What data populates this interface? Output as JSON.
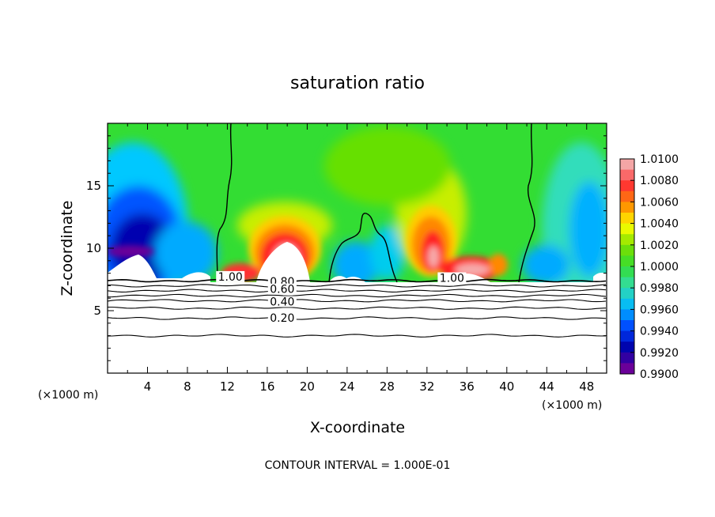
{
  "chart_data": {
    "type": "heatmap",
    "title": "saturation ratio",
    "xlabel": "X-coordinate",
    "ylabel": "Z-coordinate",
    "x_unit_left": "(×1000 m)",
    "x_unit_right": "(×1000 m)",
    "footer": "CONTOUR INTERVAL = 1.000E-01",
    "xlim": [
      0,
      50
    ],
    "ylim": [
      0,
      20
    ],
    "x_ticks": [
      4,
      8,
      12,
      16,
      20,
      24,
      28,
      32,
      36,
      40,
      44,
      48
    ],
    "y_ticks": [
      5,
      10,
      15
    ],
    "colorbar": {
      "levels": [
        "1.0100",
        "1.0080",
        "1.0060",
        "1.0040",
        "1.0020",
        "1.0000",
        "0.9980",
        "0.9960",
        "0.9940",
        "0.9920",
        "0.9900"
      ],
      "colors": [
        "#f4a6a6",
        "#ff3333",
        "#ff8c00",
        "#ffff00",
        "#7be000",
        "#33dd33",
        "#33ddaa",
        "#00b7ff",
        "#0044ff",
        "#0000aa",
        "#6a0099"
      ]
    },
    "contour_labels": [
      {
        "text": "1.00",
        "x": 12.3,
        "z": 7.6
      },
      {
        "text": "0.80",
        "x": 17.5,
        "z": 7.2
      },
      {
        "text": "0.60",
        "x": 17.5,
        "z": 6.6
      },
      {
        "text": "0.40",
        "x": 17.5,
        "z": 5.6
      },
      {
        "text": "0.20",
        "x": 17.5,
        "z": 4.3
      },
      {
        "text": "1.00",
        "x": 34.5,
        "z": 7.5
      }
    ],
    "contour_levels_z": [
      7.4,
      7.0,
      6.6,
      6.2,
      5.8,
      5.2,
      4.4,
      3.0
    ],
    "boundary_z": 7.4,
    "field_regions": [
      {
        "kind": "blob",
        "value": 1.0085,
        "x": 17.8,
        "z": 10.5,
        "rx": 2.6,
        "rz": 3.0
      },
      {
        "kind": "blob",
        "value": 1.0085,
        "x": 32.5,
        "z": 11.0,
        "rx": 2.2,
        "rz": 3.2
      },
      {
        "kind": "blob",
        "value": 1.006,
        "x": 35.5,
        "z": 8.8,
        "rx": 3.0,
        "rz": 1.5
      },
      {
        "kind": "blob",
        "value": 0.993,
        "x": 3.5,
        "z": 11.5,
        "rx": 4.0,
        "rz": 5.0
      },
      {
        "kind": "blob",
        "value": 0.994,
        "x": 25.0,
        "z": 9.0,
        "rx": 2.5,
        "rz": 2.0
      },
      {
        "kind": "blob",
        "value": 0.996,
        "x": 46.0,
        "z": 11.5,
        "rx": 4.0,
        "rz": 5.0
      }
    ]
  }
}
